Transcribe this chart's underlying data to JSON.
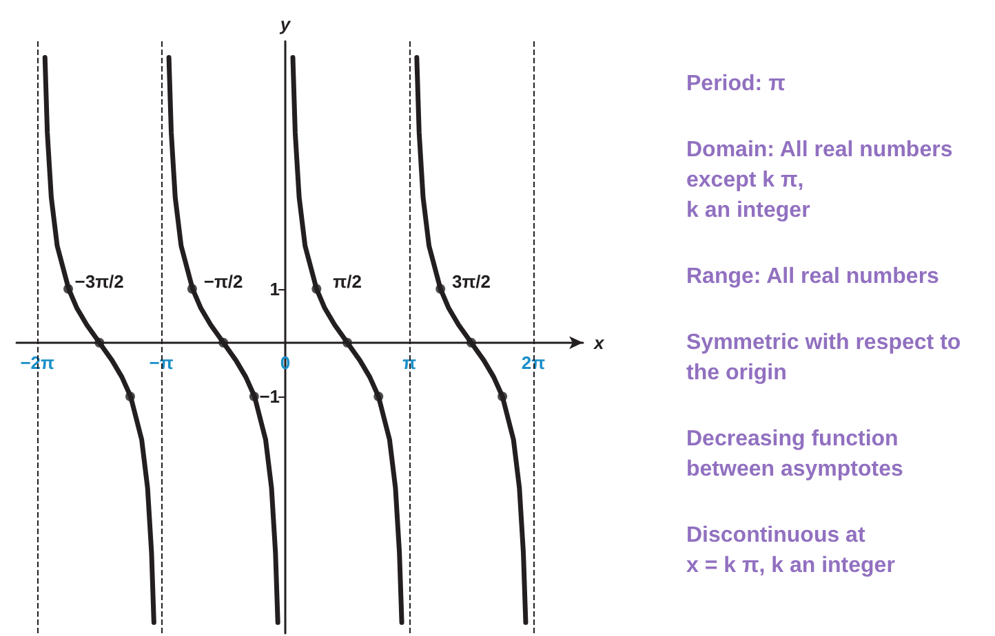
{
  "chart_data": {
    "type": "line",
    "xlabel": "x",
    "ylabel": "y",
    "xlim": [
      -6.81,
      7.54
    ],
    "ylim": [
      -5.4,
      5.6
    ],
    "xticks": [
      {
        "value": -6.283,
        "label": "−2π"
      },
      {
        "value": -3.142,
        "label": "−π"
      },
      {
        "value": 0,
        "label": "0"
      },
      {
        "value": 3.142,
        "label": "π"
      },
      {
        "value": 6.283,
        "label": "2π"
      }
    ],
    "x2lim": [
      -6.81,
      7.54
    ],
    "x2ticks": [
      {
        "value": -4.712,
        "label": "−3π/2"
      },
      {
        "value": -1.571,
        "label": "−π/2"
      },
      {
        "value": 1.571,
        "label": "π/2"
      },
      {
        "value": 4.712,
        "label": "3π/2"
      }
    ],
    "yticks": [
      -1,
      1
    ],
    "grid": false,
    "line_style": "solid",
    "series": [
      {
        "color": "#231f20",
        "x": [
          -6.09,
          -6.03,
          -5.93,
          -5.78,
          -5.49,
          -5.28,
          -5.03,
          -4.71,
          -4.39,
          -4.14,
          -3.92,
          -3.64,
          -3.49,
          -3.39,
          -3.33
        ],
        "values": [
          5.3,
          3.9,
          2.7,
          1.8,
          1.0,
          0.64,
          0.33,
          0,
          -0.33,
          -0.64,
          -1.0,
          -1.8,
          -2.7,
          -3.9,
          -5.2
        ]
      },
      {
        "color": "#231f20",
        "x": [
          -2.95,
          -2.89,
          -2.79,
          -2.64,
          -2.35,
          -2.14,
          -1.89,
          -1.57,
          -1.25,
          -1.0,
          -0.78,
          -0.5,
          -0.35,
          -0.25,
          -0.19
        ],
        "values": [
          5.3,
          3.9,
          2.7,
          1.8,
          1.0,
          0.64,
          0.33,
          0,
          -0.33,
          -0.64,
          -1.0,
          -1.8,
          -2.7,
          -3.9,
          -5.2
        ]
      },
      {
        "color": "#231f20",
        "x": [
          0.19,
          0.25,
          0.35,
          0.5,
          0.79,
          1.0,
          1.25,
          1.57,
          1.89,
          2.14,
          2.36,
          2.64,
          2.79,
          2.89,
          2.95
        ],
        "values": [
          5.3,
          3.9,
          2.7,
          1.8,
          1.0,
          0.64,
          0.33,
          0,
          -0.33,
          -0.64,
          -1.0,
          -1.8,
          -2.7,
          -3.9,
          -5.2
        ]
      },
      {
        "color": "#231f20",
        "x": [
          3.33,
          3.39,
          3.49,
          3.64,
          3.93,
          4.14,
          4.39,
          4.71,
          5.03,
          5.28,
          5.5,
          5.78,
          5.93,
          6.03,
          6.09
        ],
        "values": [
          5.3,
          3.9,
          2.7,
          1.8,
          1.0,
          0.64,
          0.33,
          0,
          -0.33,
          -0.64,
          -1.0,
          -1.8,
          -2.7,
          -3.9,
          -5.2
        ]
      },
      {
        "type": "scatter",
        "marker": "circle",
        "color": "#231f20",
        "x": [
          -5.5,
          -4.71,
          -3.93,
          -2.36,
          -1.57,
          -0.79,
          0.79,
          1.57,
          2.36,
          3.93,
          4.71,
          5.5
        ],
        "values": [
          1,
          0,
          -1,
          1,
          0,
          -1,
          1,
          0,
          -1,
          1,
          0,
          -1
        ]
      }
    ],
    "ref_lines": [
      {
        "axis": "x",
        "value": -6.283,
        "line_style": "dashed",
        "color": "#231f20"
      },
      {
        "axis": "x",
        "value": -3.142,
        "line_style": "dashed",
        "color": "#231f20"
      },
      {
        "axis": "x",
        "value": 3.142,
        "line_style": "dashed",
        "color": "#231f20"
      },
      {
        "axis": "x",
        "value": 6.283,
        "line_style": "dashed",
        "color": "#231f20"
      }
    ],
    "annotations": [
      "Period: π",
      "Domain: All real numbers\nexcept k π,\nk an integer",
      "Range: All real numbers",
      "Symmetric with respect to\nthe origin",
      "Decreasing function\nbetween asymptotes",
      "Discontinuous at\nx = k π, k an integer"
    ]
  }
}
